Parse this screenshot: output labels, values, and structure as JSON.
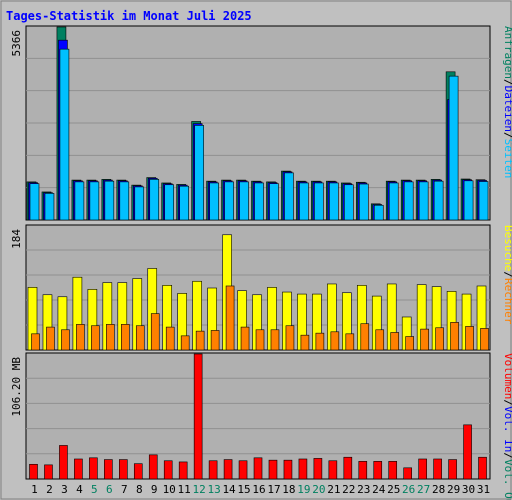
{
  "title": "Tages-Statistik im Monat Juli 2025",
  "colors": {
    "title": "#0000ff",
    "frame_bg": "#c0c0c0",
    "plot_bg": "#b0b0b0",
    "grid": "#909090",
    "hits": "#008060",
    "files": "#0000ff",
    "pages": "#00c0ff",
    "visits": "#ffff00",
    "sites": "#ff8000",
    "volume": "#ff0000",
    "weekend": "#008060",
    "day_text": "#000000"
  },
  "chart_data": [
    {
      "type": "bar",
      "panel": "top",
      "ymax_label": "5366",
      "ylim": [
        0,
        5366
      ],
      "categories": [
        "1",
        "2",
        "3",
        "4",
        "5",
        "6",
        "7",
        "8",
        "9",
        "10",
        "11",
        "12",
        "13",
        "14",
        "15",
        "16",
        "17",
        "18",
        "19",
        "20",
        "21",
        "22",
        "23",
        "24",
        "25",
        "26",
        "27",
        "28",
        "29",
        "30",
        "31"
      ],
      "weekend_days": [
        "5",
        "6",
        "12",
        "13",
        "19",
        "20",
        "26",
        "27"
      ],
      "legend": [
        "Anfragen",
        "/",
        "Dateien",
        "/",
        "Seiten"
      ],
      "series": [
        {
          "name": "Anfragen",
          "values": [
            1060,
            780,
            5366,
            1110,
            1110,
            1130,
            1110,
            970,
            1180,
            1030,
            990,
            2740,
            1080,
            1110,
            1110,
            1080,
            1060,
            1360,
            1080,
            1080,
            1080,
            1030,
            1050,
            450,
            1080,
            1110,
            1110,
            1130,
            4120,
            1140,
            1120
          ]
        },
        {
          "name": "Dateien",
          "values": [
            1040,
            760,
            5000,
            1090,
            1090,
            1110,
            1090,
            950,
            1160,
            1010,
            970,
            2680,
            1060,
            1090,
            1090,
            1060,
            1040,
            1340,
            1060,
            1060,
            1060,
            1010,
            1030,
            430,
            1060,
            1090,
            1090,
            1110,
            3350,
            1120,
            1100
          ]
        },
        {
          "name": "Seiten",
          "values": [
            1010,
            740,
            4750,
            1060,
            1060,
            1080,
            1060,
            920,
            1130,
            980,
            940,
            2630,
            1030,
            1060,
            1060,
            1030,
            1010,
            1310,
            1030,
            1030,
            1030,
            980,
            1000,
            410,
            1030,
            1060,
            1060,
            1080,
            4000,
            1090,
            1070
          ]
        }
      ]
    },
    {
      "type": "bar",
      "panel": "middle",
      "ymax_label": "184",
      "ylim": [
        0,
        184
      ],
      "categories": [
        "1",
        "2",
        "3",
        "4",
        "5",
        "6",
        "7",
        "8",
        "9",
        "10",
        "11",
        "12",
        "13",
        "14",
        "15",
        "16",
        "17",
        "18",
        "19",
        "20",
        "21",
        "22",
        "23",
        "24",
        "25",
        "26",
        "27",
        "28",
        "29",
        "30",
        "31"
      ],
      "legend": [
        "Besuche",
        "/",
        "Rechner"
      ],
      "series": [
        {
          "name": "Besuche",
          "values": [
            93,
            82,
            79,
            108,
            90,
            100,
            100,
            106,
            121,
            96,
            84,
            102,
            92,
            171,
            88,
            82,
            93,
            86,
            83,
            83,
            98,
            85,
            96,
            80,
            98,
            49,
            97,
            94,
            87,
            83,
            95
          ]
        },
        {
          "name": "Rechner",
          "values": [
            24,
            34,
            30,
            38,
            36,
            38,
            38,
            36,
            54,
            34,
            21,
            28,
            29,
            95,
            34,
            30,
            30,
            36,
            22,
            25,
            27,
            24,
            39,
            30,
            26,
            20,
            31,
            33,
            41,
            35,
            32
          ]
        }
      ]
    },
    {
      "type": "bar",
      "panel": "bottom",
      "ymax_label": "106.20 MB",
      "ylim": [
        0,
        212.4
      ],
      "categories": [
        "1",
        "2",
        "3",
        "4",
        "5",
        "6",
        "7",
        "8",
        "9",
        "10",
        "11",
        "12",
        "13",
        "14",
        "15",
        "16",
        "17",
        "18",
        "19",
        "20",
        "21",
        "22",
        "23",
        "24",
        "25",
        "26",
        "27",
        "28",
        "29",
        "30",
        "31"
      ],
      "legend": [
        "Volumen",
        "/",
        "Vol. In",
        "/",
        "Vol. Out"
      ],
      "series": [
        {
          "name": "Volumen",
          "values": [
            25,
            24,
            57,
            34,
            36,
            33,
            33,
            26,
            41,
            31,
            29,
            213,
            31,
            33,
            31,
            36,
            32,
            32,
            34,
            35,
            31,
            37,
            30,
            30,
            30,
            19,
            34,
            34,
            33,
            92,
            37
          ]
        }
      ]
    }
  ]
}
